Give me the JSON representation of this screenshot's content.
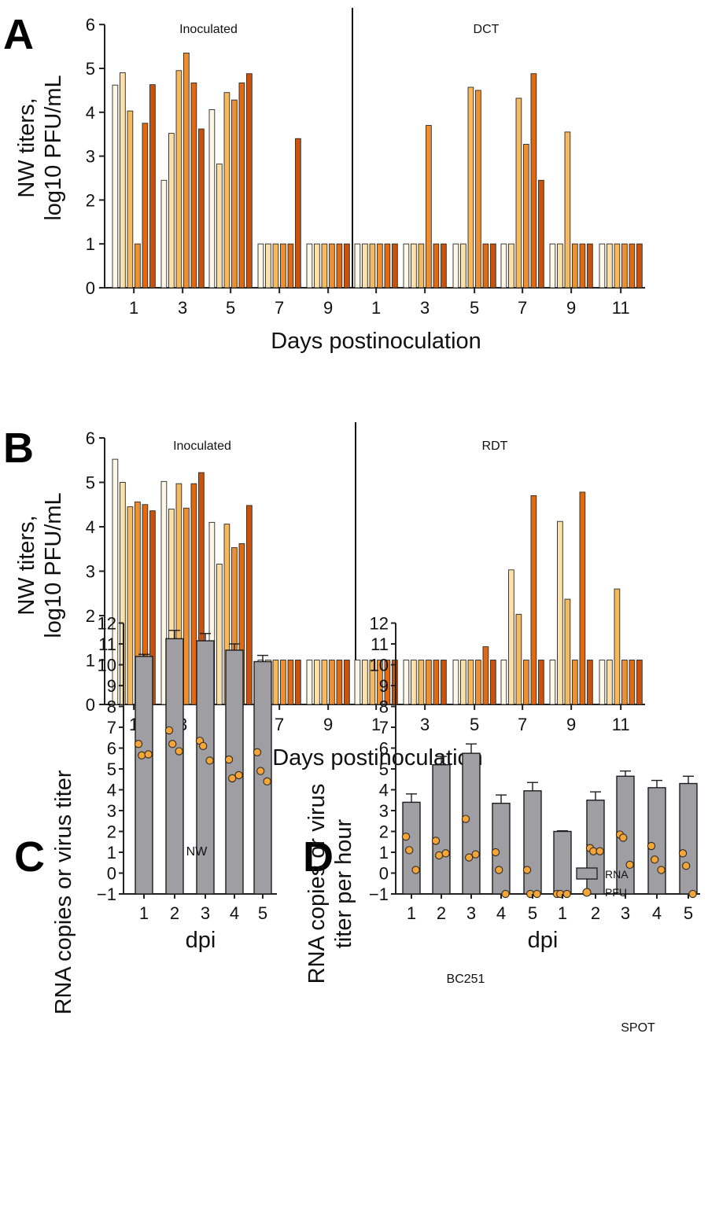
{
  "figure": {
    "panels": [
      "A",
      "B",
      "C",
      "D"
    ]
  },
  "chart_data": [
    {
      "id": "A",
      "type": "bar",
      "xlabel": "Days postinoculation",
      "ylabel_line1": "NW titers,",
      "ylabel_line2": "log10 PFU/mL",
      "ylim": [
        0,
        6
      ],
      "yticks": [
        "0",
        "1",
        "2",
        "3",
        "4",
        "5",
        "6"
      ],
      "group_labels": [
        "Inoculated",
        "DCT"
      ],
      "xtick_labels": [
        "1",
        "3",
        "5",
        "7",
        "9",
        "1",
        "3",
        "5",
        "7",
        "9",
        "11"
      ],
      "series_colors": [
        "#fff8e6",
        "#fbe0a8",
        "#f7b95e",
        "#ef9030",
        "#e06a12",
        "#c9520c"
      ],
      "day_groups": [
        [
          4.62,
          4.9,
          4.03,
          1.0,
          3.75,
          4.63
        ],
        [
          2.45,
          3.52,
          4.95,
          5.35,
          4.67,
          3.62
        ],
        [
          4.06,
          2.82,
          4.45,
          4.28,
          4.67,
          4.88
        ],
        [
          1,
          1,
          1,
          1,
          1,
          3.4
        ],
        [
          1,
          1,
          1,
          1,
          1,
          1
        ],
        [
          1,
          1,
          1,
          1,
          1,
          1
        ],
        [
          1,
          1,
          1,
          3.7,
          1,
          1
        ],
        [
          1,
          1,
          4.57,
          4.5,
          1,
          1
        ],
        [
          1,
          1,
          4.32,
          3.27,
          4.88,
          2.45
        ],
        [
          1,
          1,
          3.55,
          1,
          1,
          1
        ],
        [
          1,
          1,
          1,
          1,
          1,
          1
        ]
      ]
    },
    {
      "id": "B",
      "type": "bar",
      "xlabel": "Days postinoculation",
      "ylabel_line1": "NW titers,",
      "ylabel_line2": "log10 PFU/mL",
      "ylim": [
        0,
        6
      ],
      "yticks": [
        "0",
        "1",
        "2",
        "3",
        "4",
        "5",
        "6"
      ],
      "group_labels": [
        "Inoculated",
        "RDT"
      ],
      "xtick_labels": [
        "1",
        "3",
        "5",
        "7",
        "9",
        "1",
        "3",
        "5",
        "7",
        "9",
        "11"
      ],
      "series_colors": [
        "#fff8e6",
        "#fbe0a8",
        "#f7b95e",
        "#ef9030",
        "#e06a12",
        "#c9520c"
      ],
      "day_groups": [
        [
          5.52,
          5.0,
          4.45,
          4.56,
          4.5,
          4.36
        ],
        [
          5.02,
          4.4,
          4.97,
          4.42,
          4.97,
          5.22
        ],
        [
          4.1,
          3.16,
          4.06,
          3.53,
          3.62,
          4.48
        ],
        [
          1,
          1,
          1,
          1,
          1,
          1
        ],
        [
          1,
          1,
          1,
          1,
          1,
          1
        ],
        [
          1,
          1,
          1,
          1,
          1,
          1
        ],
        [
          1,
          1,
          1,
          1,
          1,
          1
        ],
        [
          1,
          1,
          1,
          1,
          1.3,
          1
        ],
        [
          1,
          3.03,
          2.03,
          1,
          4.7,
          1
        ],
        [
          1,
          4.12,
          2.37,
          1,
          4.78,
          1
        ],
        [
          1,
          1,
          2.6,
          1,
          1,
          1
        ]
      ]
    },
    {
      "id": "C",
      "type": "bar",
      "title": "NW",
      "xlabel": "dpi",
      "ylabel": "RNA copies or virus titer",
      "ylim": [
        -1,
        12
      ],
      "yticks": [
        "−1",
        "0",
        "1",
        "2",
        "3",
        "4",
        "5",
        "6",
        "7",
        "8",
        "9",
        "10",
        "11",
        "12"
      ],
      "categories": [
        "1",
        "2",
        "3",
        "4",
        "5"
      ],
      "bar_color": "#9e9ea3",
      "rna_values": [
        10.4,
        11.25,
        11.15,
        10.7,
        10.15
      ],
      "rna_errors": [
        0.1,
        0.4,
        0.35,
        0.3,
        0.3
      ],
      "pfu_points": [
        [
          6.2,
          5.65,
          5.7
        ],
        [
          6.85,
          6.2,
          5.85
        ],
        [
          6.35,
          6.1,
          5.4
        ],
        [
          5.45,
          4.55,
          4.7
        ],
        [
          5.8,
          4.9,
          4.4
        ]
      ]
    },
    {
      "id": "D",
      "type": "bar",
      "xlabel": "dpi",
      "ylabel_line1": "RNA copies or virus",
      "ylabel_line2": "titer per hour",
      "ylim": [
        -1,
        12
      ],
      "yticks": [
        "−1",
        "0",
        "1",
        "2",
        "3",
        "4",
        "5",
        "6",
        "7",
        "8",
        "9",
        "10",
        "11",
        "12"
      ],
      "legend": [
        {
          "label": "RNA",
          "kind": "bar"
        },
        {
          "label": "PFU",
          "kind": "dot"
        }
      ],
      "bar_color": "#9e9ea3",
      "dot_color": "#f7a535",
      "groups": [
        {
          "label": "BC251",
          "categories": [
            "1",
            "2",
            "3",
            "4",
            "5"
          ],
          "rna_values": [
            3.4,
            5.2,
            5.75,
            3.35,
            3.95
          ],
          "rna_errors": [
            0.4,
            0.4,
            0.45,
            0.4,
            0.4
          ],
          "pfu_points": [
            [
              1.75,
              1.1,
              0.15
            ],
            [
              1.55,
              0.85,
              0.95
            ],
            [
              2.6,
              0.75,
              0.9
            ],
            [
              1.0,
              0.15,
              -1.0
            ],
            [
              0.15,
              -1.0,
              -1.0
            ]
          ]
        },
        {
          "label": "SPOT",
          "categories": [
            "1",
            "2",
            "3",
            "4",
            "5"
          ],
          "rna_values": [
            2.0,
            3.5,
            4.65,
            4.1,
            4.3
          ],
          "rna_errors": [
            0.03,
            0.4,
            0.25,
            0.35,
            0.35
          ],
          "pfu_points": [
            [
              -1.0,
              -1.0,
              -1.0
            ],
            [
              1.2,
              1.05,
              1.05
            ],
            [
              1.85,
              1.7,
              0.4
            ],
            [
              1.3,
              0.65,
              0.15
            ],
            [
              0.95,
              0.35,
              -1.0
            ]
          ]
        }
      ]
    }
  ]
}
